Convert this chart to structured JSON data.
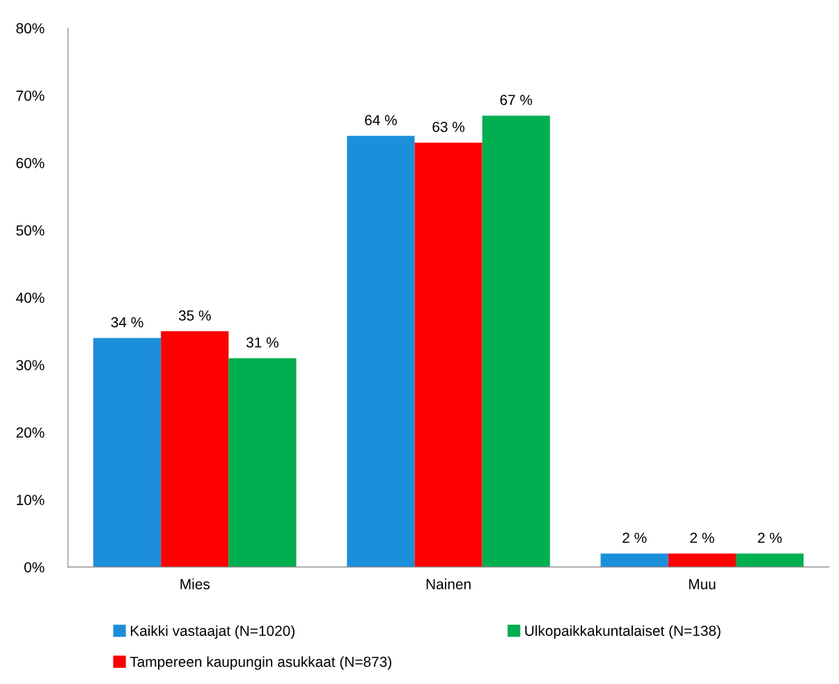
{
  "chart_data": {
    "type": "bar",
    "categories": [
      "Mies",
      "Nainen",
      "Muu"
    ],
    "series": [
      {
        "name": "Kaikki vastaajat (N=1020)",
        "color": "#1b8fda",
        "values": [
          34,
          64,
          2
        ],
        "value_labels": [
          "34 %",
          "64 %",
          "2 %"
        ]
      },
      {
        "name": "Tampereen kaupungin asukkaat (N=873)",
        "color": "#ff0000",
        "values": [
          35,
          63,
          2
        ],
        "value_labels": [
          "35 %",
          "63 %",
          "2 %"
        ]
      },
      {
        "name": "Ulkopaikkakuntalaiset (N=138)",
        "color": "#00b050",
        "values": [
          31,
          67,
          2
        ],
        "value_labels": [
          "31 %",
          "67 %",
          "2 %"
        ]
      }
    ],
    "ylim": [
      0,
      80
    ],
    "yticks": [
      {
        "value": 0,
        "label": "0%"
      },
      {
        "value": 10,
        "label": "10%"
      },
      {
        "value": 20,
        "label": "20%"
      },
      {
        "value": 30,
        "label": "30%"
      },
      {
        "value": 40,
        "label": "40%"
      },
      {
        "value": 50,
        "label": "50%"
      },
      {
        "value": 60,
        "label": "60%"
      },
      {
        "value": 70,
        "label": "70%"
      },
      {
        "value": 80,
        "label": "80%"
      }
    ],
    "grid": false,
    "legend": "bottom"
  }
}
